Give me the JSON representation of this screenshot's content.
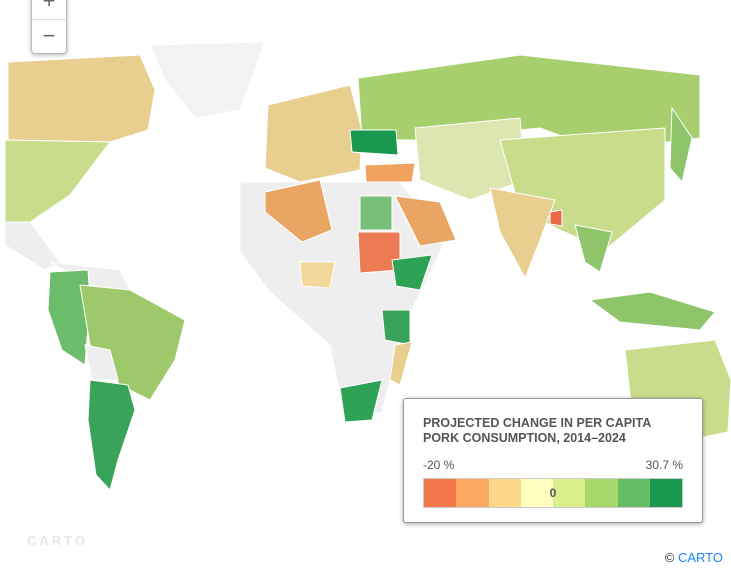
{
  "map": {
    "zoom_in": "+",
    "zoom_out": "−",
    "watermark": "CARTO"
  },
  "legend": {
    "title": "PROJECTED CHANGE IN PER CAPITA PORK CONSUMPTION, 2014–2024",
    "min_label": "-20 %",
    "max_label": "30.7 %",
    "center_label": "0",
    "colors": [
      "#f2784b",
      "#fca85e",
      "#fed98b",
      "#fffec0",
      "#d9ef8b",
      "#a6d96a",
      "#66bd63",
      "#1a9850"
    ]
  },
  "attribution": {
    "symbol": "©",
    "link": "CARTO"
  }
}
